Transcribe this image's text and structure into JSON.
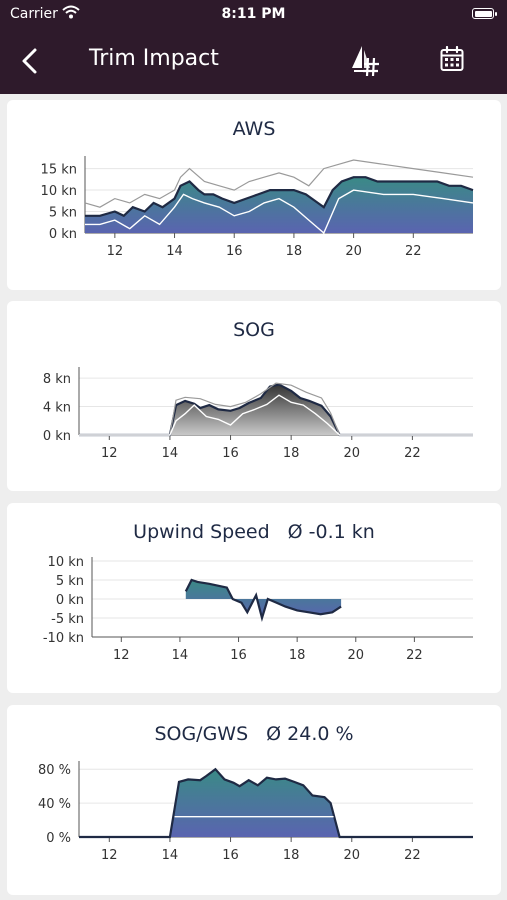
{
  "status_bar": {
    "carrier": "Carrier",
    "time": "8:11 PM"
  },
  "nav": {
    "title": "Trim Impact"
  },
  "icons": {
    "back": "chevron-left-icon",
    "boat": "sail-number-icon",
    "calendar": "calendar-icon"
  },
  "colors": {
    "header": "#2e1a2b",
    "grad_top": "#3a8a86",
    "grad_bottom": "#5a64b0",
    "sog_top": "#333333",
    "sog_bottom": "#c8c8c8",
    "line": "#1f2a44"
  },
  "charts": [
    {
      "id": "aws",
      "title": "AWS",
      "average": "",
      "y_ticks": [
        "15 kn",
        "10 kn",
        "5 kn",
        "0 kn"
      ],
      "x_ticks": [
        "12",
        "14",
        "16",
        "18",
        "20",
        "22"
      ]
    },
    {
      "id": "sog",
      "title": "SOG",
      "average": "",
      "y_ticks": [
        "8 kn",
        "4 kn",
        "0 kn"
      ],
      "x_ticks": [
        "12",
        "14",
        "16",
        "18",
        "20",
        "22"
      ]
    },
    {
      "id": "upwind",
      "title": "Upwind Speed",
      "average": "Ø -0.1 kn",
      "y_ticks": [
        "10 kn",
        "5 kn",
        "0 kn",
        "-5 kn",
        "-10 kn"
      ],
      "x_ticks": [
        "12",
        "14",
        "16",
        "18",
        "20",
        "22"
      ]
    },
    {
      "id": "sog-gws",
      "title": "SOG/GWS",
      "average": "Ø 24.0 %",
      "y_ticks": [
        "80 %",
        "40 %",
        "0 %"
      ],
      "x_ticks": [
        "12",
        "14",
        "16",
        "18",
        "20",
        "22"
      ]
    }
  ],
  "chart_data": [
    {
      "type": "area",
      "title": "AWS",
      "x_unit": "hour",
      "xlim": [
        11,
        24
      ],
      "ylim": [
        0,
        17
      ],
      "series": [
        {
          "x": [
            11,
            11.5,
            12,
            12.3,
            12.6,
            13,
            13.3,
            13.6,
            14,
            14.2,
            14.5,
            14.8,
            15,
            15.3,
            15.6,
            16,
            16.4,
            16.8,
            17.2,
            17.6,
            18,
            18.4,
            18.8,
            19,
            19.3,
            19.6,
            20,
            20.4,
            20.8,
            21.2,
            21.6,
            22,
            22.4,
            22.8,
            23.2,
            23.6,
            24
          ],
          "y": [
            4,
            4,
            5,
            4,
            6,
            5,
            7,
            6,
            8,
            11,
            12,
            10,
            9,
            9,
            8,
            7,
            8,
            9,
            10,
            10,
            10,
            9,
            7,
            6,
            10,
            12,
            13,
            13,
            12,
            12,
            12,
            12,
            12,
            12,
            11,
            11,
            10
          ]
        },
        {
          "x": [
            11,
            11.5,
            12,
            12.5,
            13,
            13.5,
            14,
            14.2,
            14.5,
            15,
            15.5,
            16,
            16.5,
            17,
            17.5,
            18,
            18.5,
            19,
            19.5,
            20,
            21,
            22,
            23,
            24
          ],
          "y": [
            7,
            6,
            8,
            7,
            9,
            8,
            10,
            13,
            15,
            12,
            11,
            10,
            12,
            13,
            14,
            13,
            11,
            15,
            16,
            17,
            16,
            15,
            14,
            13
          ]
        },
        {
          "x": [
            11,
            11.5,
            12,
            12.5,
            13,
            13.5,
            14,
            14.3,
            14.6,
            15,
            15.5,
            16,
            16.5,
            17,
            17.5,
            18,
            18.5,
            19,
            19.5,
            20,
            21,
            22,
            23,
            24
          ],
          "y": [
            2,
            2,
            3,
            1,
            4,
            2,
            6,
            9,
            8,
            7,
            6,
            4,
            5,
            7,
            8,
            6,
            3,
            0,
            8,
            10,
            9,
            9,
            8,
            7
          ]
        }
      ]
    },
    {
      "type": "area",
      "title": "SOG",
      "x_unit": "hour",
      "xlim": [
        11,
        24
      ],
      "ylim": [
        0,
        9
      ],
      "series": [
        {
          "x": [
            11,
            14,
            14.2,
            14.5,
            14.8,
            15,
            15.3,
            15.6,
            16,
            16.3,
            16.6,
            17,
            17.3,
            17.6,
            18,
            18.3,
            18.6,
            19,
            19.3,
            19.6,
            24
          ],
          "y": [
            0,
            0,
            4.2,
            4.8,
            4.4,
            3.8,
            4.2,
            3.6,
            3.4,
            3.8,
            4.5,
            5.2,
            6.8,
            7.1,
            6.2,
            5.2,
            4.8,
            4.1,
            2.6,
            0,
            0
          ]
        },
        {
          "x": [
            11,
            14,
            14.2,
            14.5,
            15,
            15.5,
            16,
            16.5,
            17,
            17.5,
            18,
            18.5,
            19,
            19.3,
            19.6,
            24
          ],
          "y": [
            0,
            0,
            4.9,
            5.3,
            5.1,
            4.3,
            4.0,
            4.6,
            5.8,
            7.3,
            7.0,
            6.0,
            5.2,
            3.1,
            0,
            0
          ]
        },
        {
          "x": [
            11,
            14,
            14.2,
            14.5,
            14.8,
            15.2,
            15.6,
            16,
            16.4,
            16.8,
            17.2,
            17.6,
            18,
            18.4,
            18.8,
            19.2,
            19.6,
            24
          ],
          "y": [
            0,
            0,
            2.0,
            3.0,
            4.2,
            2.6,
            2.2,
            1.4,
            3.0,
            3.6,
            4.3,
            5.6,
            4.6,
            4.2,
            3.0,
            1.6,
            0,
            0
          ]
        }
      ]
    },
    {
      "type": "area",
      "title": "Upwind Speed",
      "x_unit": "hour",
      "xlim": [
        11,
        24
      ],
      "ylim": [
        -10,
        10
      ],
      "series": [
        {
          "x": [
            14.2,
            14.4,
            14.6,
            15,
            15.3,
            15.6,
            15.8,
            16.1,
            16.3,
            16.6,
            16.8,
            17,
            17.3,
            17.6,
            18,
            18.4,
            18.8,
            19.2,
            19.5
          ],
          "y": [
            2.0,
            5.0,
            4.5,
            4.0,
            3.5,
            3.0,
            0,
            -1,
            -3.5,
            1,
            -5,
            0,
            -1,
            -2,
            -3,
            -3.5,
            -4,
            -3.5,
            -2
          ]
        }
      ]
    },
    {
      "type": "area",
      "title": "SOG/GWS",
      "x_unit": "hour",
      "xlim": [
        11,
        24
      ],
      "ylim": [
        0,
        85
      ],
      "series": [
        {
          "x": [
            11,
            14,
            14.3,
            14.6,
            15,
            15.2,
            15.5,
            15.8,
            16.1,
            16.3,
            16.6,
            16.9,
            17.2,
            17.5,
            17.8,
            18.1,
            18.4,
            18.7,
            19.1,
            19.3,
            19.6,
            24
          ],
          "y": [
            0,
            0,
            65,
            68,
            67,
            72,
            80,
            68,
            64,
            60,
            67,
            61,
            70,
            68,
            69,
            65,
            61,
            49,
            47,
            40,
            0,
            0
          ]
        },
        {
          "x": [
            14.15,
            19.4
          ],
          "y": [
            24,
            24
          ]
        }
      ]
    }
  ]
}
